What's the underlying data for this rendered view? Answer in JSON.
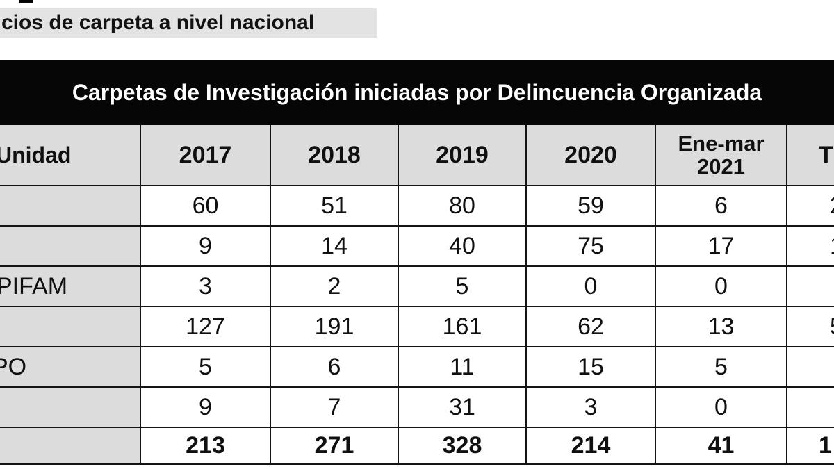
{
  "colors": {
    "title_bar_black": "#060606",
    "header_gray": "#dcdcdc",
    "caption_strip_gray": "#e3e3e3",
    "grid_border": "#141414",
    "page_background": "#ffffff"
  },
  "caption_fragment": "cios de carpeta a nivel nacional",
  "table": {
    "title": "Carpetas de Investigación iniciadas por Delincuencia Organizada",
    "headers": {
      "unit": "Unidad",
      "y2017": "2017",
      "y2018": "2018",
      "y2019": "2019",
      "y2020": "2020",
      "period_line1": "Ene-mar",
      "period_line2": "2021",
      "total_fragment": "T"
    },
    "rows": [
      {
        "unit_fragment": "",
        "values": [
          "60",
          "51",
          "80",
          "59",
          "6"
        ],
        "total_fragment": "2"
      },
      {
        "unit_fragment": "",
        "values": [
          "9",
          "14",
          "40",
          "75",
          "17"
        ],
        "total_fragment": "1"
      },
      {
        "unit_fragment": "PIFAM",
        "values": [
          "3",
          "2",
          "5",
          "0",
          "0"
        ],
        "total_fragment": ""
      },
      {
        "unit_fragment": "",
        "values": [
          "127",
          "191",
          "161",
          "62",
          "13"
        ],
        "total_fragment": "5"
      },
      {
        "unit_fragment": "PO",
        "values": [
          "5",
          "6",
          "11",
          "15",
          "5"
        ],
        "total_fragment": ""
      },
      {
        "unit_fragment": "",
        "values": [
          "9",
          "7",
          "31",
          "3",
          "0"
        ],
        "total_fragment": ""
      }
    ],
    "totals": {
      "unit_fragment": "",
      "values": [
        "213",
        "271",
        "328",
        "214",
        "41"
      ],
      "total_fragment": "1"
    }
  }
}
